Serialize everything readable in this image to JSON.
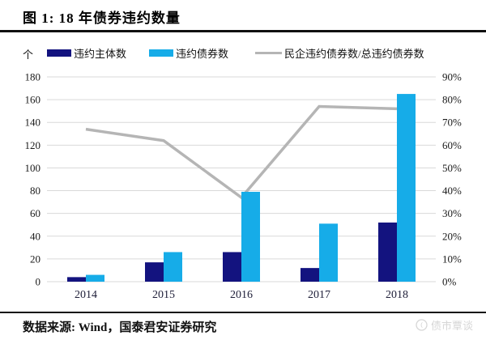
{
  "title": "图 1: 18 年债券违约数量",
  "unit_label": "个",
  "legend": [
    {
      "label": "违约主体数",
      "color": "#13137F",
      "type": "bar"
    },
    {
      "label": "违约债券数",
      "color": "#16ACE8",
      "type": "bar"
    },
    {
      "label": "民企违约债券数/总违约债券数",
      "color": "#B5B5B5",
      "type": "line"
    }
  ],
  "source": "数据来源: Wind，国泰君安证券研究",
  "watermark": "债市覃谈",
  "colors": {
    "bar_dark": "#13137F",
    "bar_light": "#16ACE8",
    "line_gray": "#B5B5B5",
    "grid": "#D9D9D9",
    "text": "#1a1a1a"
  },
  "chart_data": {
    "type": "bar+line combo",
    "title": "图 1: 18 年债券违约数量",
    "categories": [
      "2014",
      "2015",
      "2016",
      "2017",
      "2018"
    ],
    "series": [
      {
        "name": "违约主体数",
        "type": "bar",
        "axis": "left",
        "color": "#13137F",
        "values": [
          4,
          17,
          26,
          12,
          52
        ]
      },
      {
        "name": "违约债券数",
        "type": "bar",
        "axis": "left",
        "color": "#16ACE8",
        "values": [
          6,
          26,
          79,
          51,
          165
        ]
      },
      {
        "name": "民企违约债券数/总违约债券数",
        "type": "line",
        "axis": "right",
        "color": "#B5B5B5",
        "values_pct": [
          67,
          62,
          37,
          77,
          76
        ]
      }
    ],
    "left_axis": {
      "unit": "个",
      "min": 0,
      "max": 180,
      "step": 20,
      "ticks": [
        "0",
        "20",
        "40",
        "60",
        "80",
        "100",
        "120",
        "140",
        "160",
        "180"
      ]
    },
    "right_axis": {
      "min": 0,
      "max": 90,
      "step": 10,
      "ticks": [
        "0%",
        "10%",
        "20%",
        "30%",
        "40%",
        "50%",
        "60%",
        "70%",
        "80%",
        "90%"
      ]
    },
    "grid": true,
    "legend_position": "top"
  }
}
